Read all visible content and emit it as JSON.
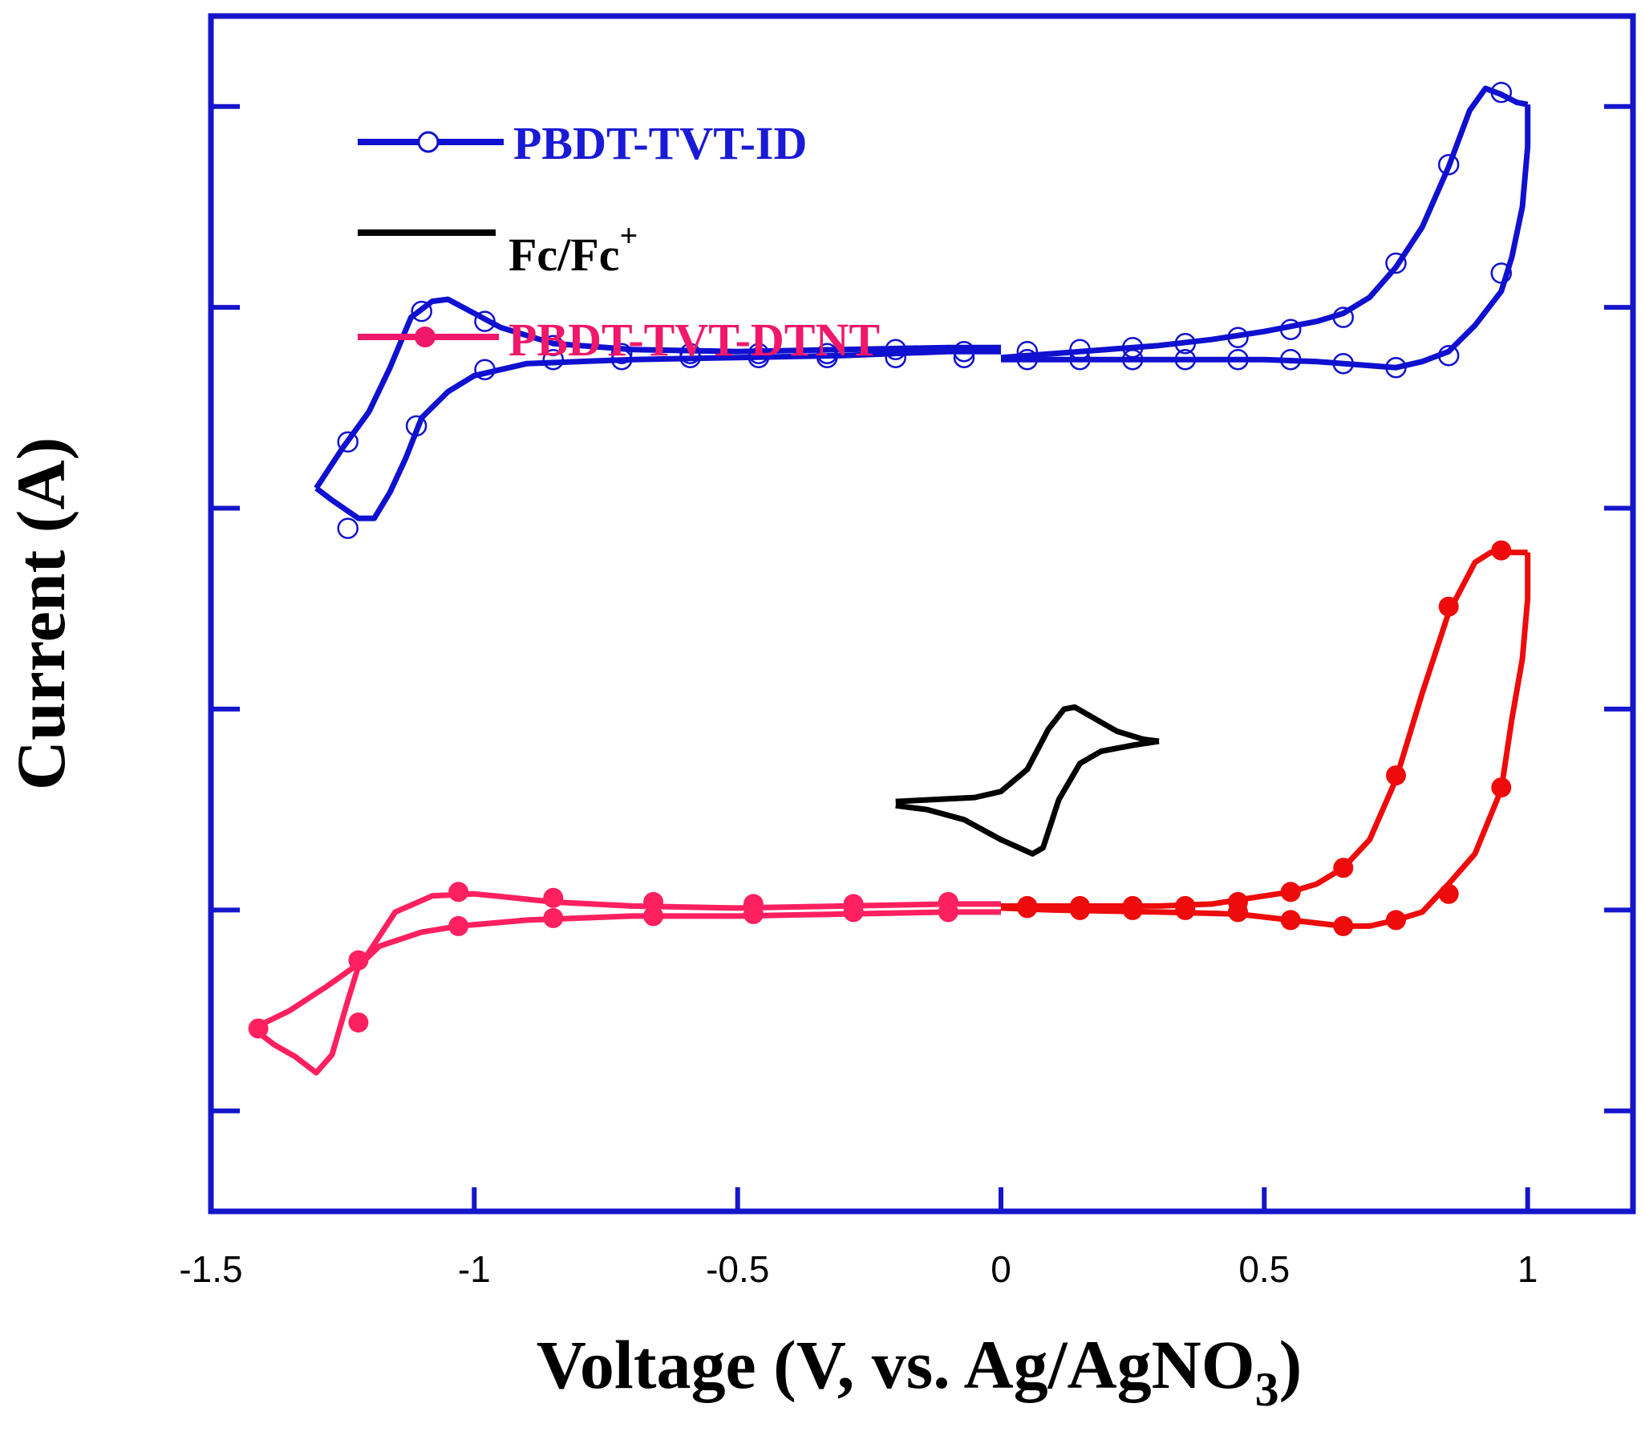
{
  "chart_data": {
    "type": "line",
    "title": "",
    "xlabel": "Voltage (V, vs. Ag/AgNO",
    "xlabel_subscript": "3",
    "xlabel_close": ")",
    "ylabel": "Current (A)",
    "xlim": [
      -1.5,
      1.2
    ],
    "ylim": [
      -1.0,
      4.95
    ],
    "x_ticks": [
      -1.5,
      -1.0,
      -0.5,
      0.0,
      0.5,
      1.0
    ],
    "x_tick_labels": [
      "-1.5",
      "-1",
      "-0.5",
      "0",
      "0.5",
      "1"
    ],
    "y_ticks": [
      -0.5,
      0.5,
      1.5,
      2.5,
      3.5,
      4.5
    ],
    "y_tick_labels": [],
    "grid": false,
    "legend_position": "top-left",
    "series": [
      {
        "name": "PBDT-TVT-ID",
        "color": "#1010d0",
        "label_color": "#1a1ad6",
        "marker": "open-circle",
        "segments": [
          [
            [
              0.0,
              3.25
            ],
            [
              0.1,
              3.27
            ],
            [
              0.2,
              3.29
            ],
            [
              0.3,
              3.31
            ],
            [
              0.4,
              3.34
            ],
            [
              0.5,
              3.38
            ],
            [
              0.6,
              3.43
            ],
            [
              0.65,
              3.47
            ],
            [
              0.7,
              3.55
            ],
            [
              0.75,
              3.7
            ],
            [
              0.8,
              3.9
            ],
            [
              0.85,
              4.2
            ],
            [
              0.89,
              4.48
            ],
            [
              0.92,
              4.59
            ],
            [
              0.95,
              4.56
            ],
            [
              0.98,
              4.52
            ],
            [
              1.0,
              4.51
            ]
          ],
          [
            [
              1.0,
              4.51
            ],
            [
              1.0,
              4.3
            ],
            [
              0.99,
              4.0
            ],
            [
              0.97,
              3.75
            ],
            [
              0.95,
              3.58
            ],
            [
              0.9,
              3.41
            ],
            [
              0.85,
              3.28
            ],
            [
              0.8,
              3.23
            ],
            [
              0.75,
              3.2
            ],
            [
              0.7,
              3.21
            ],
            [
              0.6,
              3.23
            ],
            [
              0.5,
              3.24
            ],
            [
              0.4,
              3.24
            ],
            [
              0.2,
              3.24
            ],
            [
              0.0,
              3.24
            ]
          ],
          [
            [
              0.0,
              3.3
            ],
            [
              -0.1,
              3.3
            ],
            [
              -0.3,
              3.29
            ],
            [
              -0.5,
              3.28
            ],
            [
              -0.7,
              3.29
            ],
            [
              -0.85,
              3.32
            ],
            [
              -0.95,
              3.4
            ],
            [
              -1.0,
              3.47
            ],
            [
              -1.05,
              3.54
            ],
            [
              -1.08,
              3.53
            ],
            [
              -1.12,
              3.45
            ],
            [
              -1.16,
              3.2
            ],
            [
              -1.2,
              2.98
            ],
            [
              -1.25,
              2.8
            ],
            [
              -1.3,
              2.6
            ]
          ],
          [
            [
              -1.3,
              2.6
            ],
            [
              -1.27,
              2.54
            ],
            [
              -1.22,
              2.45
            ],
            [
              -1.19,
              2.45
            ],
            [
              -1.16,
              2.58
            ],
            [
              -1.13,
              2.75
            ],
            [
              -1.1,
              2.95
            ],
            [
              -1.05,
              3.08
            ],
            [
              -1.0,
              3.16
            ],
            [
              -0.9,
              3.22
            ],
            [
              -0.7,
              3.24
            ],
            [
              -0.5,
              3.25
            ],
            [
              -0.3,
              3.26
            ],
            [
              -0.1,
              3.28
            ],
            [
              0.0,
              3.28
            ]
          ]
        ],
        "markers": [
          [
            0.05,
            3.28
          ],
          [
            0.15,
            3.29
          ],
          [
            0.25,
            3.3
          ],
          [
            0.35,
            3.32
          ],
          [
            0.45,
            3.35
          ],
          [
            0.55,
            3.39
          ],
          [
            0.65,
            3.45
          ],
          [
            0.75,
            3.72
          ],
          [
            0.85,
            4.21
          ],
          [
            0.95,
            4.57
          ],
          [
            0.95,
            3.67
          ],
          [
            0.85,
            3.26
          ],
          [
            0.75,
            3.2
          ],
          [
            0.65,
            3.22
          ],
          [
            0.55,
            3.24
          ],
          [
            0.45,
            3.24
          ],
          [
            0.35,
            3.24
          ],
          [
            0.25,
            3.24
          ],
          [
            0.15,
            3.24
          ],
          [
            0.05,
            3.24
          ],
          [
            -0.07,
            3.28
          ],
          [
            -0.2,
            3.29
          ],
          [
            -0.33,
            3.27
          ],
          [
            -0.46,
            3.27
          ],
          [
            -0.59,
            3.27
          ],
          [
            -0.72,
            3.27
          ],
          [
            -0.85,
            3.31
          ],
          [
            -0.98,
            3.43
          ],
          [
            -1.1,
            3.48
          ],
          [
            -1.24,
            2.83
          ],
          [
            -1.24,
            2.4
          ],
          [
            -1.11,
            2.91
          ],
          [
            -0.98,
            3.19
          ],
          [
            -0.85,
            3.24
          ],
          [
            -0.72,
            3.24
          ],
          [
            -0.59,
            3.25
          ],
          [
            -0.46,
            3.25
          ],
          [
            -0.33,
            3.25
          ],
          [
            -0.2,
            3.25
          ],
          [
            -0.07,
            3.25
          ]
        ]
      },
      {
        "name": "Fc/Fc+",
        "label_main": "Fc/Fc",
        "label_sup": "+",
        "color": "#000000",
        "label_color": "#000000",
        "marker": "none",
        "segments": [
          [
            [
              -0.2,
              1.04
            ],
            [
              -0.05,
              1.06
            ],
            [
              0.0,
              1.09
            ],
            [
              0.05,
              1.2
            ],
            [
              0.09,
              1.4
            ],
            [
              0.12,
              1.5
            ],
            [
              0.14,
              1.51
            ],
            [
              0.18,
              1.45
            ],
            [
              0.22,
              1.39
            ],
            [
              0.27,
              1.35
            ],
            [
              0.3,
              1.34
            ]
          ],
          [
            [
              0.3,
              1.34
            ],
            [
              0.25,
              1.32
            ],
            [
              0.19,
              1.29
            ],
            [
              0.15,
              1.23
            ],
            [
              0.11,
              1.05
            ],
            [
              0.08,
              0.81
            ],
            [
              0.06,
              0.78
            ],
            [
              0.0,
              0.85
            ],
            [
              -0.07,
              0.95
            ],
            [
              -0.14,
              1.0
            ],
            [
              -0.2,
              1.02
            ]
          ]
        ],
        "markers": []
      },
      {
        "name": "PBDT-TVT-DTNT",
        "color": "#ee0b0b",
        "color_negative": "#ff2060",
        "label_color": "#f0186a",
        "marker": "filled-circle",
        "segments": [
          [
            [
              0.0,
              0.52
            ],
            [
              0.1,
              0.52
            ],
            [
              0.2,
              0.52
            ],
            [
              0.3,
              0.52
            ],
            [
              0.4,
              0.53
            ],
            [
              0.5,
              0.57
            ],
            [
              0.55,
              0.59
            ],
            [
              0.6,
              0.63
            ],
            [
              0.65,
              0.71
            ],
            [
              0.7,
              0.85
            ],
            [
              0.75,
              1.15
            ],
            [
              0.8,
              1.58
            ],
            [
              0.85,
              1.98
            ],
            [
              0.9,
              2.23
            ],
            [
              0.93,
              2.28
            ],
            [
              0.97,
              2.28
            ],
            [
              1.0,
              2.28
            ]
          ],
          [
            [
              1.0,
              2.28
            ],
            [
              1.0,
              2.05
            ],
            [
              0.99,
              1.75
            ],
            [
              0.97,
              1.45
            ],
            [
              0.95,
              1.1
            ],
            [
              0.9,
              0.78
            ],
            [
              0.85,
              0.63
            ],
            [
              0.8,
              0.49
            ],
            [
              0.75,
              0.45
            ],
            [
              0.7,
              0.42
            ],
            [
              0.65,
              0.42
            ],
            [
              0.55,
              0.45
            ],
            [
              0.45,
              0.48
            ],
            [
              0.3,
              0.49
            ],
            [
              0.1,
              0.5
            ],
            [
              0.0,
              0.51
            ]
          ],
          [
            [
              0.0,
              0.53
            ],
            [
              -0.1,
              0.53
            ],
            [
              -0.3,
              0.52
            ],
            [
              -0.5,
              0.51
            ],
            [
              -0.7,
              0.52
            ],
            [
              -0.85,
              0.54
            ],
            [
              -0.96,
              0.57
            ],
            [
              -1.0,
              0.58
            ],
            [
              -1.08,
              0.57
            ],
            [
              -1.15,
              0.49
            ],
            [
              -1.21,
              0.25
            ],
            [
              -1.28,
              0.12
            ],
            [
              -1.35,
              0.0
            ],
            [
              -1.42,
              -0.09
            ]
          ],
          [
            [
              -1.42,
              -0.09
            ],
            [
              -1.38,
              -0.17
            ],
            [
              -1.34,
              -0.23
            ],
            [
              -1.3,
              -0.31
            ],
            [
              -1.27,
              -0.22
            ],
            [
              -1.24,
              0.05
            ],
            [
              -1.22,
              0.22
            ],
            [
              -1.18,
              0.32
            ],
            [
              -1.1,
              0.39
            ],
            [
              -1.03,
              0.42
            ],
            [
              -0.9,
              0.45
            ],
            [
              -0.7,
              0.47
            ],
            [
              -0.5,
              0.47
            ],
            [
              -0.3,
              0.48
            ],
            [
              -0.1,
              0.49
            ],
            [
              0.0,
              0.49
            ]
          ]
        ],
        "markers": [
          [
            0.05,
            0.52
          ],
          [
            0.15,
            0.52
          ],
          [
            0.25,
            0.52
          ],
          [
            0.35,
            0.52
          ],
          [
            0.45,
            0.54
          ],
          [
            0.55,
            0.59
          ],
          [
            0.65,
            0.71
          ],
          [
            0.75,
            1.17
          ],
          [
            0.85,
            2.01
          ],
          [
            0.95,
            2.29
          ],
          [
            0.95,
            1.11
          ],
          [
            0.85,
            0.58
          ],
          [
            0.75,
            0.45
          ],
          [
            0.65,
            0.42
          ],
          [
            0.55,
            0.45
          ],
          [
            0.45,
            0.49
          ],
          [
            0.35,
            0.5
          ],
          [
            0.25,
            0.5
          ],
          [
            0.15,
            0.5
          ],
          [
            0.05,
            0.51
          ],
          [
            -0.1,
            0.54
          ],
          [
            -0.28,
            0.53
          ],
          [
            -0.47,
            0.53
          ],
          [
            -0.66,
            0.54
          ],
          [
            -0.85,
            0.56
          ],
          [
            -1.03,
            0.59
          ],
          [
            -1.22,
            0.25
          ],
          [
            -1.41,
            -0.09
          ],
          [
            -1.22,
            -0.06
          ],
          [
            -1.03,
            0.42
          ],
          [
            -0.85,
            0.46
          ],
          [
            -0.66,
            0.47
          ],
          [
            -0.47,
            0.48
          ],
          [
            -0.28,
            0.49
          ],
          [
            -0.1,
            0.49
          ]
        ]
      }
    ]
  }
}
